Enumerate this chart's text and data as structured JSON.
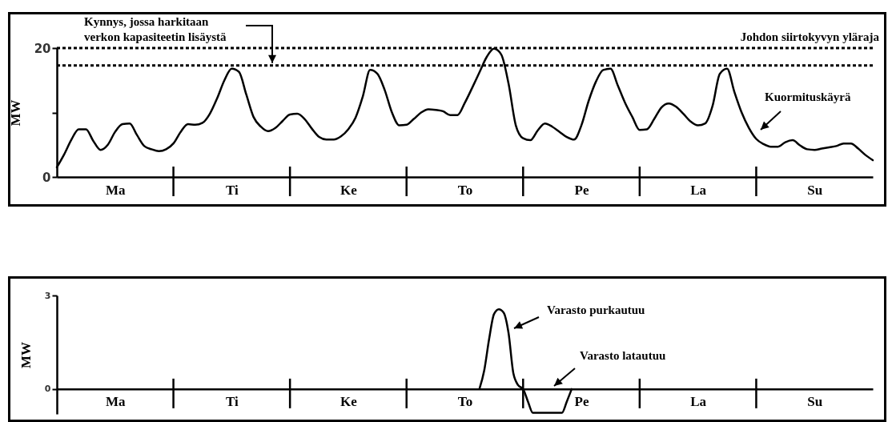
{
  "chart_data": [
    {
      "type": "line",
      "ylabel": "MW",
      "categories": [
        null,
        null,
        null,
        null,
        null,
        null,
        null,
        null,
        "Ma",
        null,
        null,
        null,
        null,
        null,
        null,
        null,
        null,
        null,
        null,
        null,
        null,
        null,
        null,
        null,
        "Ti",
        null,
        null,
        null,
        null,
        null,
        null,
        null,
        null,
        null,
        null,
        null,
        null,
        null,
        null,
        null,
        "Ke",
        null,
        null,
        null,
        null,
        null,
        null,
        null,
        null,
        null,
        null,
        null,
        null,
        null,
        null,
        null,
        "To",
        null,
        null,
        null,
        null,
        null,
        null,
        null,
        null,
        null,
        null,
        null,
        null,
        null,
        null,
        null,
        "Pe",
        null,
        null,
        null,
        null,
        null,
        null,
        null,
        null,
        null,
        null,
        null,
        null,
        null,
        null,
        null,
        "La",
        null,
        null,
        null,
        null,
        null,
        null,
        null,
        null,
        null,
        null,
        null,
        null,
        null,
        null,
        null,
        "Su",
        null,
        null,
        null,
        null,
        null,
        null,
        null,
        null
      ],
      "series": [
        {
          "name": "Kuormituskäyrä",
          "color": "#000000",
          "values": [
            1.5,
            3.5,
            5.8,
            7.4,
            7.4,
            5.6,
            4.2,
            5,
            7,
            8.2,
            8.3,
            6.5,
            4.8,
            4.3,
            4,
            4.3,
            5.2,
            7,
            8.2,
            8.1,
            8.4,
            9.8,
            12.2,
            15,
            16.8,
            16.3,
            12.8,
            9.3,
            7.8,
            7.1,
            7.6,
            8.7,
            9.7,
            9.8,
            9,
            7.5,
            6.2,
            5.8,
            5.8,
            6.3,
            7.4,
            9.2,
            12.5,
            16.6,
            16,
            13.5,
            10,
            8,
            8.1,
            9,
            10,
            10.5,
            10.4,
            10.2,
            9.6,
            9.6,
            11.5,
            13.8,
            16.2,
            18.6,
            19.9,
            19,
            14.5,
            8,
            6,
            5.7,
            7.2,
            8.3,
            7.8,
            7,
            6.2,
            5.8,
            8,
            11.8,
            14.8,
            16.6,
            16.8,
            14.2,
            11.5,
            9.3,
            7.3,
            7.4,
            9,
            10.8,
            11.4,
            10.9,
            9.8,
            8.6,
            8,
            8.3,
            11,
            16,
            16.8,
            13.2,
            10,
            7.6,
            5.9,
            5.1,
            4.7,
            4.7,
            5.4,
            5.7,
            4.9,
            4.3,
            4.2,
            4.4,
            4.6,
            4.8,
            5.2,
            5.2,
            4.4,
            3.4,
            2.6
          ]
        }
      ],
      "ylim": [
        0,
        20
      ],
      "yticks": [
        0,
        {
          "value": 10,
          "label": null
        },
        20
      ],
      "ref_lines": [
        {
          "axis": "y",
          "value": 20,
          "label": "Johdon siirtokyvyn yläraja",
          "color": "#000000",
          "line_style": "dotted"
        },
        {
          "axis": "y",
          "value": 17.3,
          "label": "Kynnys, jossa harkitaan verkon kapasiteetin lisäystä",
          "color": "#000000",
          "line_style": "dotted"
        }
      ],
      "line_style": "solid"
    },
    {
      "type": "line",
      "ylabel": "MW",
      "categories": [
        null,
        null,
        null,
        null,
        null,
        null,
        null,
        null,
        null,
        null,
        null,
        null,
        "Ma",
        null,
        null,
        null,
        null,
        null,
        null,
        null,
        null,
        null,
        null,
        null,
        null,
        null,
        null,
        null,
        null,
        null,
        null,
        null,
        null,
        null,
        null,
        null,
        "Ti",
        null,
        null,
        null,
        null,
        null,
        null,
        null,
        null,
        null,
        null,
        null,
        null,
        null,
        null,
        null,
        null,
        null,
        null,
        null,
        null,
        null,
        null,
        null,
        "Ke",
        null,
        null,
        null,
        null,
        null,
        null,
        null,
        null,
        null,
        null,
        null,
        null,
        null,
        null,
        null,
        null,
        null,
        null,
        null,
        null,
        null,
        null,
        null,
        "To",
        null,
        null,
        null,
        null,
        null,
        null,
        null,
        null,
        null,
        null,
        null,
        null,
        null,
        null,
        null,
        null,
        null,
        null,
        null,
        null,
        null,
        null,
        null,
        "Pe",
        null,
        null,
        null,
        null,
        null,
        null,
        null,
        null,
        null,
        null,
        null,
        null,
        null,
        null,
        null,
        null,
        null,
        null,
        null,
        null,
        null,
        null,
        null,
        "La",
        null,
        null,
        null,
        null,
        null,
        null,
        null,
        null,
        null,
        null,
        null,
        null,
        null,
        null,
        null,
        null,
        null,
        null,
        null,
        null,
        null,
        null,
        null,
        "Su",
        null,
        null,
        null,
        null,
        null,
        null,
        null,
        null,
        null,
        null,
        null,
        null
      ],
      "series": [
        {
          "color": "#000000",
          "values": [
            null,
            null,
            null,
            null,
            null,
            null,
            null,
            null,
            null,
            null,
            null,
            null,
            null,
            null,
            null,
            null,
            null,
            null,
            null,
            null,
            null,
            null,
            null,
            null,
            null,
            null,
            null,
            null,
            null,
            null,
            null,
            null,
            null,
            null,
            null,
            null,
            null,
            null,
            null,
            null,
            null,
            null,
            null,
            null,
            null,
            null,
            null,
            null,
            null,
            null,
            null,
            null,
            null,
            null,
            null,
            null,
            null,
            null,
            null,
            null,
            null,
            null,
            null,
            null,
            null,
            null,
            null,
            null,
            null,
            null,
            null,
            null,
            null,
            null,
            null,
            null,
            null,
            null,
            null,
            null,
            null,
            null,
            null,
            null,
            null,
            null,
            null,
            0,
            0.6,
            1.6,
            2.4,
            2.56,
            2.45,
            1.8,
            0.5,
            0.12,
            0,
            -0.4,
            -0.76,
            -0.76,
            -0.76,
            -0.76,
            -0.76,
            -0.76,
            -0.76,
            -0.4,
            0,
            null,
            null,
            null,
            null,
            null,
            null,
            null,
            null,
            null,
            null,
            null,
            null,
            null,
            null,
            null,
            null,
            null,
            null,
            null,
            null,
            null,
            null,
            null,
            null,
            null,
            null,
            null,
            null,
            null,
            null,
            null,
            null,
            null,
            null,
            null,
            null,
            null,
            null,
            null,
            null,
            null,
            null,
            null,
            null,
            null,
            null,
            null,
            null,
            null,
            null,
            null,
            null,
            null,
            null,
            null,
            null,
            null,
            null,
            null,
            null,
            null,
            null
          ]
        }
      ],
      "ylim": [
        -0.8,
        3
      ],
      "yticks": [
        0,
        3
      ],
      "annotations": [
        "Varasto purkautuu",
        "Varasto latautuu"
      ],
      "line_style": "solid"
    }
  ]
}
